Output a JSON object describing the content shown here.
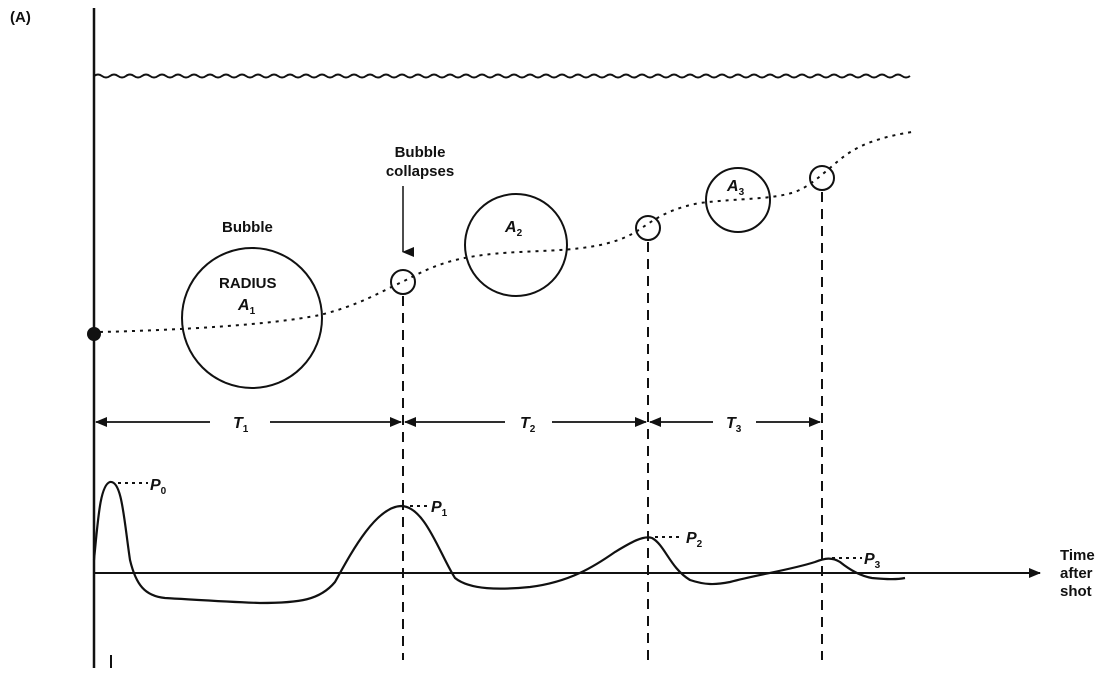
{
  "panel_label": "(A)",
  "labels": {
    "bubble": "Bubble",
    "bubble_collapses": [
      "Bubble",
      "collapses"
    ],
    "radius": "RADIUS",
    "time_axis": [
      "Time",
      "after",
      "shot"
    ]
  },
  "radii": [
    {
      "letter": "A",
      "sub": "1"
    },
    {
      "letter": "A",
      "sub": "2"
    },
    {
      "letter": "A",
      "sub": "3"
    }
  ],
  "periods": [
    {
      "letter": "T",
      "sub": "1"
    },
    {
      "letter": "T",
      "sub": "2"
    },
    {
      "letter": "T",
      "sub": "3"
    }
  ],
  "pulses": [
    {
      "letter": "P",
      "sub": "0"
    },
    {
      "letter": "P",
      "sub": "1"
    },
    {
      "letter": "P",
      "sub": "2"
    },
    {
      "letter": "P",
      "sub": "3"
    }
  ]
}
